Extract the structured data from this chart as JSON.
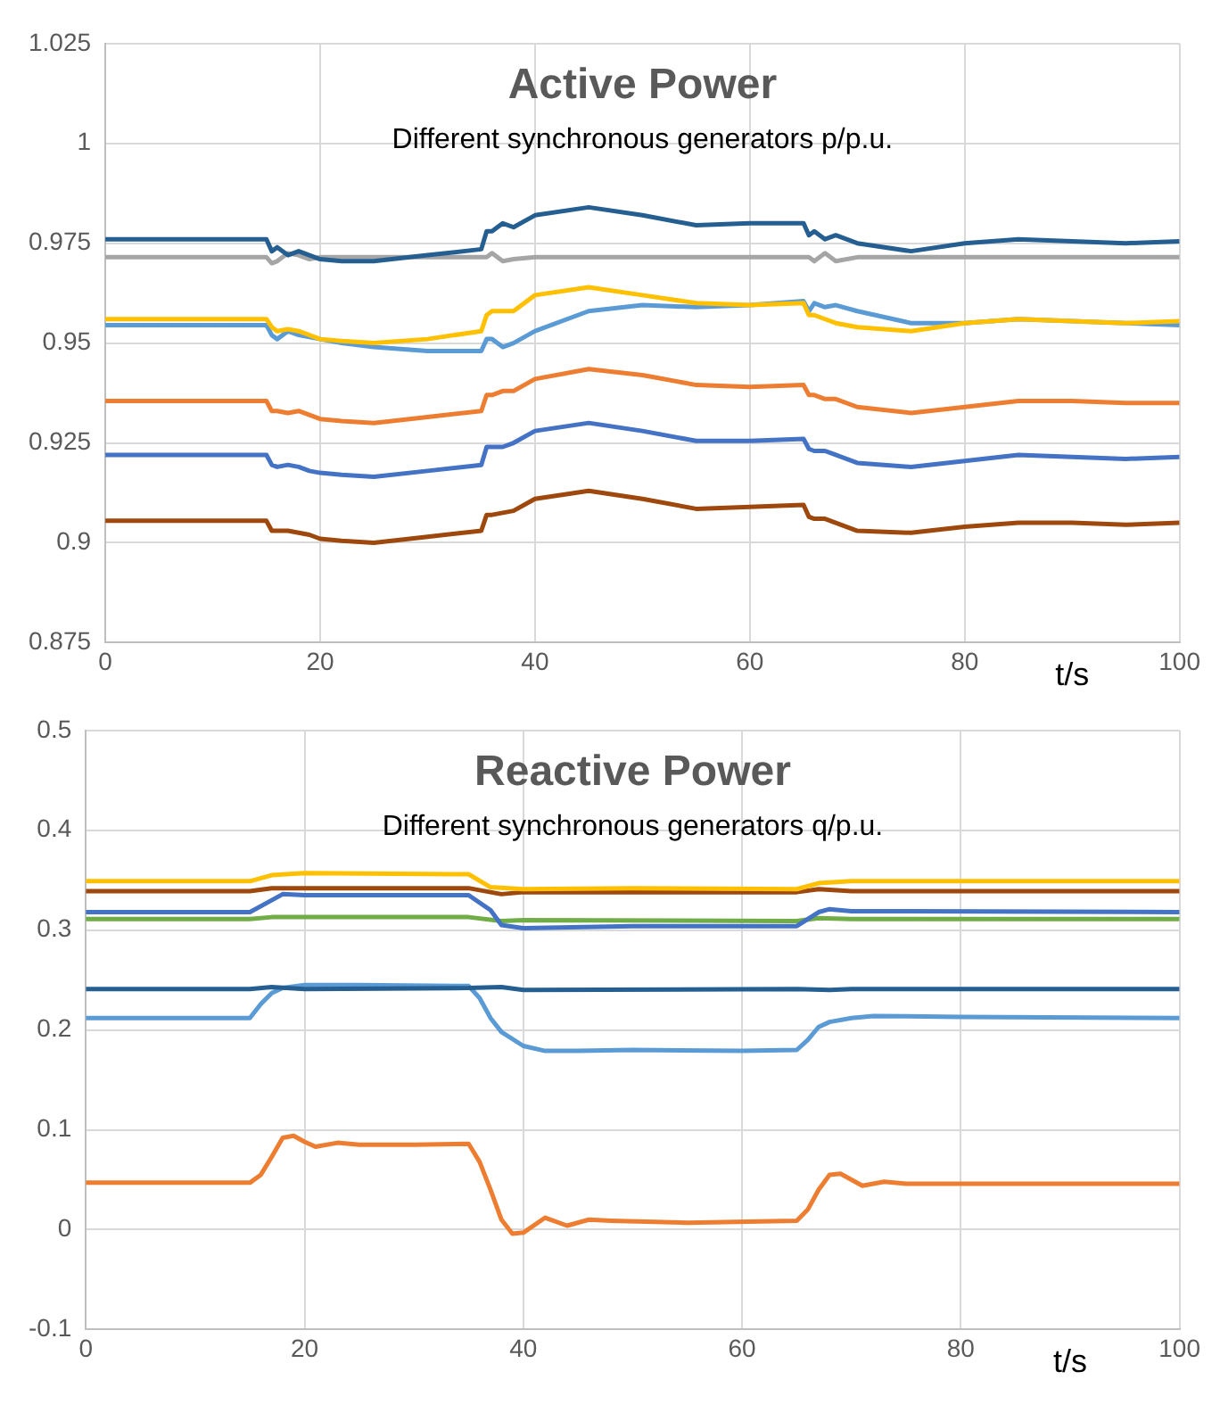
{
  "chart_data": [
    {
      "type": "line",
      "title": "Active Power",
      "subtitle": "Different synchronous generators p/p.u.",
      "xlabel": "t/s",
      "xlim": [
        0,
        100
      ],
      "xticks": [
        0,
        20,
        40,
        60,
        80,
        100
      ],
      "ylim": [
        0.875,
        1.025
      ],
      "yticks": [
        0.875,
        0.9,
        0.925,
        0.95,
        0.975,
        1,
        1.025
      ],
      "grid": true,
      "legend": false,
      "marker": "none",
      "line_style": "solid",
      "x": [
        0,
        15,
        15.5,
        16,
        17,
        18,
        19,
        20,
        22,
        25,
        30,
        35,
        35.5,
        36,
        37,
        38,
        40,
        45,
        50,
        55,
        60,
        65,
        65.5,
        66,
        67,
        68,
        70,
        75,
        80,
        85,
        90,
        95,
        100
      ],
      "series": [
        {
          "color": "#255e91",
          "values": [
            0.976,
            0.976,
            0.973,
            0.974,
            0.972,
            0.973,
            0.972,
            0.971,
            0.9705,
            0.9705,
            0.972,
            0.9735,
            0.978,
            0.978,
            0.98,
            0.979,
            0.982,
            0.984,
            0.982,
            0.9795,
            0.98,
            0.98,
            0.977,
            0.978,
            0.976,
            0.977,
            0.975,
            0.973,
            0.975,
            0.976,
            0.9755,
            0.975,
            0.9755
          ]
        },
        {
          "color": "#a5a5a5",
          "values": [
            0.9715,
            0.9715,
            0.97,
            0.9705,
            0.9725,
            0.972,
            0.971,
            0.9715,
            0.9715,
            0.9715,
            0.9715,
            0.9715,
            0.9715,
            0.9725,
            0.9705,
            0.971,
            0.9715,
            0.9715,
            0.9715,
            0.9715,
            0.9715,
            0.9715,
            0.9715,
            0.9705,
            0.9725,
            0.9705,
            0.9715,
            0.9715,
            0.9715,
            0.9715,
            0.9715,
            0.9715,
            0.9715
          ]
        },
        {
          "color": "#ffc000",
          "values": [
            0.956,
            0.956,
            0.954,
            0.953,
            0.9535,
            0.953,
            0.952,
            0.951,
            0.9505,
            0.95,
            0.951,
            0.953,
            0.957,
            0.958,
            0.958,
            0.958,
            0.962,
            0.964,
            0.962,
            0.96,
            0.9595,
            0.96,
            0.957,
            0.957,
            0.956,
            0.955,
            0.954,
            0.953,
            0.955,
            0.956,
            0.9555,
            0.955,
            0.9555
          ]
        },
        {
          "color": "#5b9bd5",
          "values": [
            0.9545,
            0.9545,
            0.952,
            0.951,
            0.953,
            0.952,
            0.9515,
            0.951,
            0.95,
            0.949,
            0.948,
            0.948,
            0.951,
            0.951,
            0.949,
            0.95,
            0.953,
            0.958,
            0.9595,
            0.959,
            0.9595,
            0.9605,
            0.958,
            0.96,
            0.959,
            0.9595,
            0.958,
            0.955,
            0.955,
            0.956,
            0.9555,
            0.955,
            0.9545
          ]
        },
        {
          "color": "#ed7d31",
          "values": [
            0.9355,
            0.9355,
            0.933,
            0.933,
            0.9325,
            0.933,
            0.932,
            0.931,
            0.9305,
            0.93,
            0.9315,
            0.933,
            0.937,
            0.937,
            0.938,
            0.938,
            0.941,
            0.9435,
            0.942,
            0.9395,
            0.939,
            0.9395,
            0.937,
            0.937,
            0.936,
            0.936,
            0.934,
            0.9325,
            0.934,
            0.9355,
            0.9355,
            0.935,
            0.935
          ]
        },
        {
          "color": "#4472c4",
          "values": [
            0.922,
            0.922,
            0.9195,
            0.919,
            0.9195,
            0.919,
            0.918,
            0.9175,
            0.917,
            0.9165,
            0.918,
            0.9195,
            0.924,
            0.924,
            0.924,
            0.925,
            0.928,
            0.93,
            0.928,
            0.9255,
            0.9255,
            0.926,
            0.9235,
            0.923,
            0.923,
            0.922,
            0.92,
            0.919,
            0.9205,
            0.922,
            0.9215,
            0.921,
            0.9215
          ]
        },
        {
          "color": "#9e480e",
          "values": [
            0.9055,
            0.9055,
            0.903,
            0.903,
            0.903,
            0.9025,
            0.902,
            0.901,
            0.9005,
            0.9,
            0.9015,
            0.903,
            0.907,
            0.907,
            0.9075,
            0.908,
            0.911,
            0.913,
            0.911,
            0.9085,
            0.909,
            0.9095,
            0.9065,
            0.906,
            0.906,
            0.905,
            0.903,
            0.9025,
            0.904,
            0.905,
            0.905,
            0.9045,
            0.905
          ]
        }
      ]
    },
    {
      "type": "line",
      "title": "Reactive Power",
      "subtitle": "Different synchronous generators q/p.u.",
      "xlabel": "t/s",
      "xlim": [
        0,
        100
      ],
      "xticks": [
        0,
        20,
        40,
        60,
        80,
        100
      ],
      "ylim": [
        -0.1,
        0.5
      ],
      "yticks": [
        -0.1,
        0,
        0.1,
        0.2,
        0.3,
        0.4,
        0.5
      ],
      "grid": true,
      "legend": false,
      "marker": "none",
      "line_style": "solid",
      "series": [
        {
          "color": "#ffc000",
          "x": [
            0,
            15,
            17,
            20,
            35,
            37,
            40,
            50,
            65,
            67,
            70,
            100
          ],
          "values": [
            0.349,
            0.349,
            0.355,
            0.357,
            0.356,
            0.343,
            0.341,
            0.342,
            0.341,
            0.347,
            0.349,
            0.349
          ]
        },
        {
          "color": "#9e480e",
          "x": [
            0,
            15,
            17,
            35,
            38,
            40,
            65,
            67,
            70,
            100
          ],
          "values": [
            0.339,
            0.339,
            0.342,
            0.342,
            0.336,
            0.338,
            0.338,
            0.341,
            0.339,
            0.339
          ]
        },
        {
          "color": "#4472c4",
          "x": [
            0,
            15,
            17,
            18,
            20,
            35,
            37,
            38,
            40,
            50,
            65,
            67,
            68,
            70,
            100
          ],
          "values": [
            0.318,
            0.318,
            0.33,
            0.336,
            0.335,
            0.335,
            0.32,
            0.305,
            0.302,
            0.304,
            0.304,
            0.318,
            0.321,
            0.319,
            0.318
          ]
        },
        {
          "color": "#70ad47",
          "x": [
            0,
            15,
            17,
            35,
            38,
            40,
            65,
            67,
            70,
            100
          ],
          "values": [
            0.311,
            0.311,
            0.313,
            0.313,
            0.309,
            0.31,
            0.309,
            0.312,
            0.311,
            0.311
          ]
        },
        {
          "color": "#255e91",
          "x": [
            0,
            15,
            17,
            20,
            35,
            38,
            40,
            65,
            68,
            70,
            100
          ],
          "values": [
            0.241,
            0.241,
            0.243,
            0.241,
            0.242,
            0.243,
            0.24,
            0.241,
            0.24,
            0.241,
            0.241
          ]
        },
        {
          "color": "#5b9bd5",
          "x": [
            0,
            15,
            16,
            17,
            18,
            20,
            25,
            35,
            36,
            37,
            38,
            40,
            42,
            45,
            50,
            60,
            65,
            66,
            67,
            68,
            70,
            72,
            80,
            100
          ],
          "values": [
            0.212,
            0.212,
            0.226,
            0.237,
            0.242,
            0.245,
            0.245,
            0.244,
            0.232,
            0.212,
            0.198,
            0.184,
            0.179,
            0.179,
            0.18,
            0.179,
            0.18,
            0.19,
            0.203,
            0.208,
            0.212,
            0.214,
            0.213,
            0.212
          ]
        },
        {
          "color": "#ed7d31",
          "x": [
            0,
            15,
            16,
            17,
            18,
            19,
            20,
            21,
            23,
            25,
            30,
            35,
            36,
            37,
            38,
            39,
            40,
            42,
            44,
            46,
            48,
            55,
            65,
            66,
            67,
            68,
            69,
            70,
            71,
            73,
            75,
            80,
            100
          ],
          "values": [
            0.047,
            0.047,
            0.055,
            0.073,
            0.092,
            0.094,
            0.088,
            0.083,
            0.087,
            0.085,
            0.085,
            0.086,
            0.068,
            0.04,
            0.01,
            -0.004,
            -0.003,
            0.012,
            0.004,
            0.01,
            0.009,
            0.007,
            0.009,
            0.02,
            0.04,
            0.055,
            0.056,
            0.05,
            0.044,
            0.048,
            0.046,
            0.046,
            0.046
          ]
        }
      ]
    }
  ]
}
